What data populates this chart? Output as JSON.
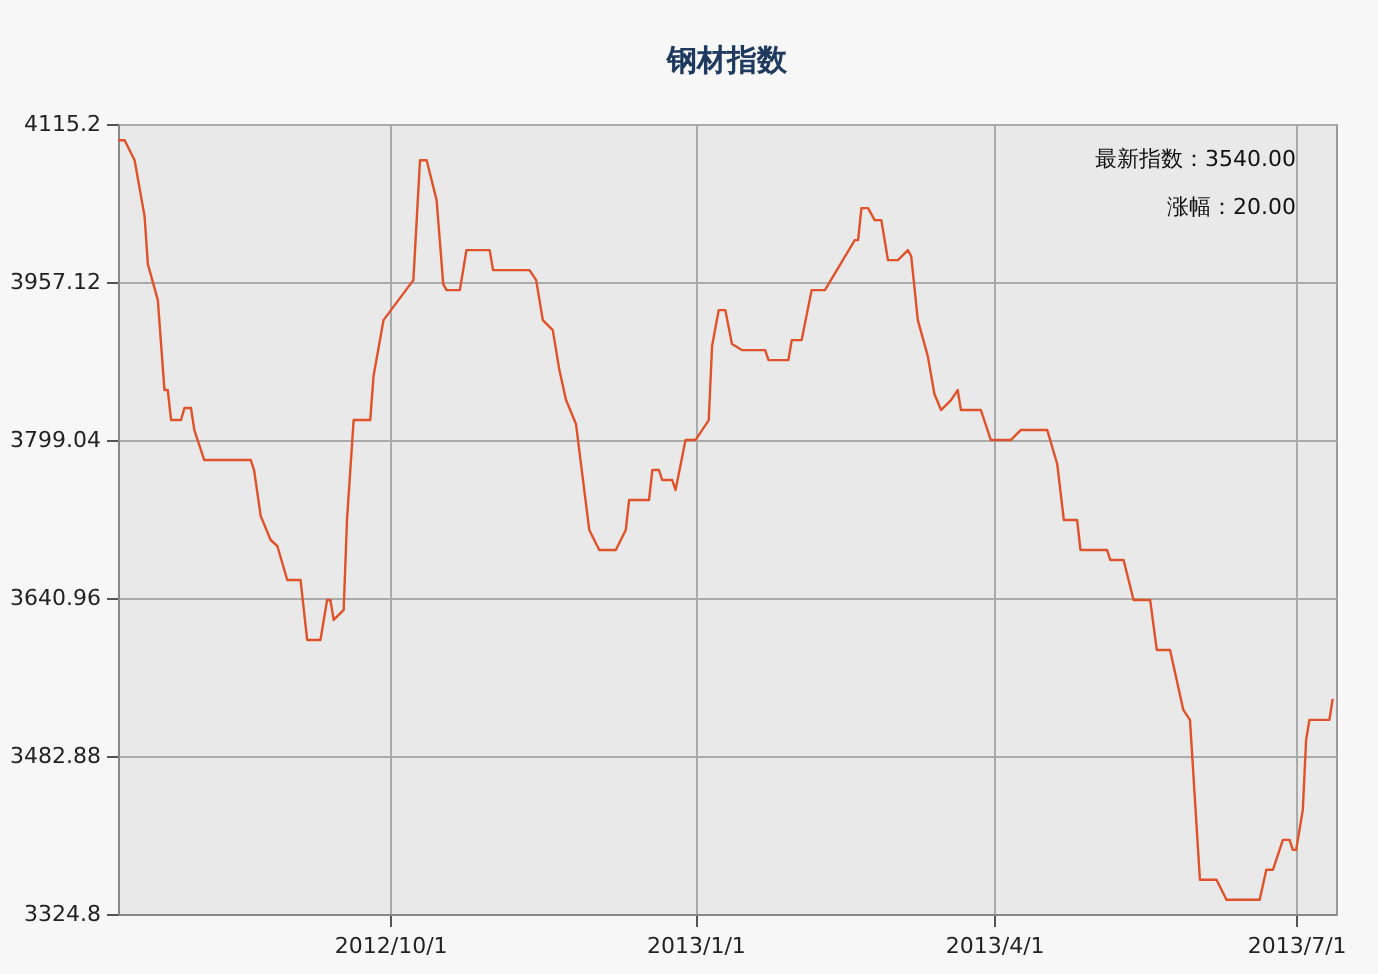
{
  "chart_data": {
    "type": "line",
    "title": "钢材指数",
    "x": [
      "2012-07-11",
      "2012-07-13",
      "2012-07-16",
      "2012-07-19",
      "2012-07-20",
      "2012-07-23",
      "2012-07-25",
      "2012-07-26",
      "2012-07-27",
      "2012-07-30",
      "2012-07-31",
      "2012-08-02",
      "2012-08-03",
      "2012-08-06",
      "2012-08-20",
      "2012-08-21",
      "2012-08-23",
      "2012-08-26",
      "2012-08-28",
      "2012-08-31",
      "2012-09-04",
      "2012-09-06",
      "2012-09-10",
      "2012-09-12",
      "2012-09-13",
      "2012-09-14",
      "2012-09-17",
      "2012-09-18",
      "2012-09-20",
      "2012-09-25",
      "2012-09-26",
      "2012-09-29",
      "2012-10-08",
      "2012-10-10",
      "2012-10-12",
      "2012-10-15",
      "2012-10-17",
      "2012-10-18",
      "2012-10-22",
      "2012-10-24",
      "2012-10-31",
      "2012-11-01",
      "2012-11-12",
      "2012-11-14",
      "2012-11-16",
      "2012-11-19",
      "2012-11-21",
      "2012-11-23",
      "2012-11-26",
      "2012-11-30",
      "2012-12-03",
      "2012-12-08",
      "2012-12-11",
      "2012-12-12",
      "2012-12-18",
      "2012-12-19",
      "2012-12-21",
      "2012-12-22",
      "2012-12-25",
      "2012-12-26",
      "2012-12-29",
      "2013-01-01",
      "2013-01-03",
      "2013-01-05",
      "2013-01-06",
      "2013-01-08",
      "2013-01-10",
      "2013-01-12",
      "2013-01-15",
      "2013-01-22",
      "2013-01-23",
      "2013-01-29",
      "2013-01-30",
      "2013-02-02",
      "2013-02-05",
      "2013-02-09",
      "2013-02-18",
      "2013-02-19",
      "2013-02-20",
      "2013-02-22",
      "2013-02-24",
      "2013-02-26",
      "2013-02-28",
      "2013-03-03",
      "2013-03-06",
      "2013-03-07",
      "2013-03-09",
      "2013-03-12",
      "2013-03-14",
      "2013-03-16",
      "2013-03-19",
      "2013-03-21",
      "2013-03-22",
      "2013-03-28",
      "2013-03-31",
      "2013-04-06",
      "2013-04-09",
      "2013-04-17",
      "2013-04-20",
      "2013-04-22",
      "2013-04-26",
      "2013-04-27",
      "2013-05-05",
      "2013-05-06",
      "2013-05-10",
      "2013-05-13",
      "2013-05-18",
      "2013-05-20",
      "2013-05-24",
      "2013-05-28",
      "2013-05-30",
      "2013-06-02",
      "2013-06-07",
      "2013-06-10",
      "2013-06-20",
      "2013-06-22",
      "2013-06-24",
      "2013-06-27",
      "2013-06-29",
      "2013-06-30",
      "2013-07-01",
      "2013-07-03",
      "2013-07-04",
      "2013-07-05",
      "2013-07-11",
      "2013-07-12"
    ],
    "series": [
      {
        "color": "#e0522a",
        "values": [
          4099,
          4099,
          4079,
          4023,
          3975,
          3939,
          3849,
          3849,
          3819,
          3819,
          3831,
          3831,
          3809,
          3779,
          3779,
          3769,
          3723,
          3699,
          3693,
          3659,
          3659,
          3599,
          3599,
          3639,
          3639,
          3619,
          3629,
          3719,
          3819,
          3819,
          3863,
          3919,
          3959,
          4079,
          4079,
          4039,
          3955,
          3949,
          3949,
          3989,
          3989,
          3969,
          3969,
          3959,
          3919,
          3909,
          3869,
          3839,
          3815,
          3709,
          3689,
          3689,
          3709,
          3739,
          3739,
          3769,
          3769,
          3759,
          3759,
          3749,
          3799,
          3799,
          3809,
          3819,
          3893,
          3929,
          3929,
          3895,
          3889,
          3889,
          3879,
          3879,
          3899,
          3899,
          3949,
          3949,
          3999,
          3999,
          4031,
          4031,
          4019,
          4019,
          3979,
          3979,
          3989,
          3983,
          3919,
          3883,
          3845,
          3829,
          3839,
          3849,
          3829,
          3829,
          3799,
          3799,
          3809,
          3809,
          3775,
          3719,
          3719,
          3689,
          3689,
          3679,
          3679,
          3639,
          3639,
          3589,
          3589,
          3529,
          3519,
          3359,
          3359,
          3339,
          3339,
          3369,
          3369,
          3399,
          3399,
          3389,
          3389,
          3429,
          3499,
          3519,
          3519,
          3540
        ]
      }
    ],
    "xlim": [
      "2012-07-11",
      "2013-07-13"
    ],
    "xticks": [
      {
        "value": "2012-10-01",
        "label": "2012/10/1"
      },
      {
        "value": "2013-01-01",
        "label": "2013/1/1"
      },
      {
        "value": "2013-04-01",
        "label": "2013/4/1"
      },
      {
        "value": "2013-07-01",
        "label": "2013/7/1"
      }
    ],
    "ylim": [
      3324.8,
      4115.2
    ],
    "yticks": [
      3324.8,
      3482.88,
      3640.96,
      3799.04,
      3957.12,
      4115.2
    ],
    "grid": true,
    "annotations": [
      "最新指数：3540.00",
      "涨幅：20.00"
    ]
  }
}
